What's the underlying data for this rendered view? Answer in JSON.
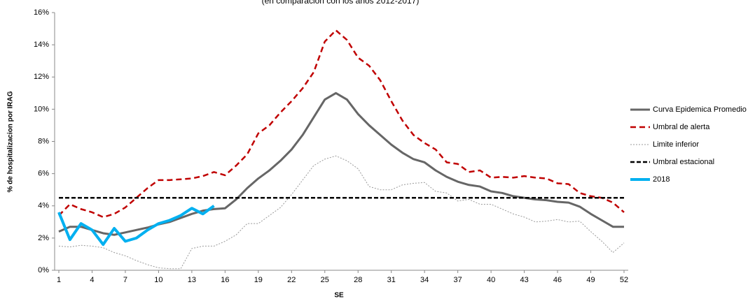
{
  "chart_data": {
    "type": "line",
    "subtitle": "(en comparación con los años 2012-2017)",
    "xlabel": "SE",
    "ylabel": "% de hospitalizacion por IRAG",
    "x": [
      1,
      2,
      3,
      4,
      5,
      6,
      7,
      8,
      9,
      10,
      11,
      12,
      13,
      14,
      15,
      16,
      17,
      18,
      19,
      20,
      21,
      22,
      23,
      24,
      25,
      26,
      27,
      28,
      29,
      30,
      31,
      32,
      33,
      34,
      35,
      36,
      37,
      38,
      39,
      40,
      41,
      42,
      43,
      44,
      45,
      46,
      47,
      48,
      49,
      50,
      51,
      52
    ],
    "xlim": [
      1,
      52
    ],
    "xticks": [
      1,
      4,
      7,
      10,
      13,
      16,
      19,
      22,
      25,
      28,
      31,
      34,
      37,
      40,
      43,
      46,
      49,
      52
    ],
    "ylim": [
      0,
      16
    ],
    "yticks": [
      {
        "value": 0,
        "label": "0%"
      },
      {
        "value": 2,
        "label": "2%"
      },
      {
        "value": 4,
        "label": "4%"
      },
      {
        "value": 6,
        "label": "6%"
      },
      {
        "value": 8,
        "label": "8%"
      },
      {
        "value": 10,
        "label": "10%"
      },
      {
        "value": 12,
        "label": "12%"
      },
      {
        "value": 14,
        "label": "14%"
      },
      {
        "value": 16,
        "label": "16%"
      }
    ],
    "series": [
      {
        "name": "Curva Epidemica Promedio",
        "color": "#666666",
        "values": [
          2.4,
          2.7,
          2.7,
          2.5,
          2.3,
          2.2,
          2.35,
          2.5,
          2.65,
          2.85,
          3.0,
          3.25,
          3.5,
          3.7,
          3.8,
          3.85,
          4.4,
          5.1,
          5.7,
          6.2,
          6.8,
          7.5,
          8.4,
          9.5,
          10.6,
          11.0,
          10.6,
          9.7,
          9.0,
          8.4,
          7.8,
          7.3,
          6.9,
          6.7,
          6.2,
          5.8,
          5.5,
          5.3,
          5.2,
          4.9,
          4.8,
          4.6,
          4.5,
          4.4,
          4.35,
          4.25,
          4.2,
          3.95,
          3.5,
          3.1,
          2.7,
          2.7
        ]
      },
      {
        "name": "Umbral de alerta",
        "color": "#c00000",
        "values": [
          3.4,
          4.1,
          3.8,
          3.6,
          3.3,
          3.5,
          3.9,
          4.5,
          5.1,
          5.6,
          5.6,
          5.65,
          5.7,
          5.85,
          6.1,
          5.9,
          6.5,
          7.2,
          8.5,
          9.0,
          9.8,
          10.5,
          11.3,
          12.3,
          14.2,
          14.9,
          14.3,
          13.2,
          12.7,
          11.8,
          10.5,
          9.3,
          8.4,
          7.9,
          7.5,
          6.7,
          6.6,
          6.1,
          6.2,
          5.75,
          5.8,
          5.75,
          5.85,
          5.75,
          5.7,
          5.4,
          5.35,
          4.8,
          4.6,
          4.5,
          4.2,
          3.6
        ]
      },
      {
        "name": "Limite inferior",
        "color": "#999999",
        "values": [
          1.5,
          1.45,
          1.55,
          1.5,
          1.4,
          1.1,
          0.9,
          0.6,
          0.35,
          0.15,
          0.1,
          0.1,
          1.35,
          1.5,
          1.5,
          1.8,
          2.2,
          2.9,
          2.9,
          3.4,
          3.9,
          4.7,
          5.6,
          6.5,
          6.9,
          7.1,
          6.8,
          6.3,
          5.2,
          5.0,
          5.0,
          5.3,
          5.4,
          5.45,
          4.9,
          4.8,
          4.3,
          4.4,
          4.1,
          4.1,
          3.8,
          3.5,
          3.3,
          3.0,
          3.05,
          3.15,
          3.0,
          3.05,
          2.4,
          1.8,
          1.1,
          1.7
        ]
      },
      {
        "name": "Umbral estacional",
        "color": "#000000",
        "values": [
          4.5,
          4.5,
          4.5,
          4.5,
          4.5,
          4.5,
          4.5,
          4.5,
          4.5,
          4.5,
          4.5,
          4.5,
          4.5,
          4.5,
          4.5,
          4.5,
          4.5,
          4.5,
          4.5,
          4.5,
          4.5,
          4.5,
          4.5,
          4.5,
          4.5,
          4.5,
          4.5,
          4.5,
          4.5,
          4.5,
          4.5,
          4.5,
          4.5,
          4.5,
          4.5,
          4.5,
          4.5,
          4.5,
          4.5,
          4.5,
          4.5,
          4.5,
          4.5,
          4.5,
          4.5,
          4.5,
          4.5,
          4.5,
          4.5,
          4.5,
          4.5,
          4.5
        ]
      },
      {
        "name": "2018",
        "color": "#00b0f0",
        "values": [
          3.6,
          1.9,
          2.9,
          2.5,
          1.6,
          2.6,
          1.8,
          2.0,
          2.5,
          2.9,
          3.1,
          3.4,
          3.85,
          3.5,
          4.0,
          null,
          null,
          null,
          null,
          null,
          null,
          null,
          null,
          null,
          null,
          null,
          null,
          null,
          null,
          null,
          null,
          null,
          null,
          null,
          null,
          null,
          null,
          null,
          null,
          null,
          null,
          null,
          null,
          null,
          null,
          null,
          null,
          null,
          null,
          null,
          null,
          null
        ]
      }
    ],
    "legend": "right"
  }
}
